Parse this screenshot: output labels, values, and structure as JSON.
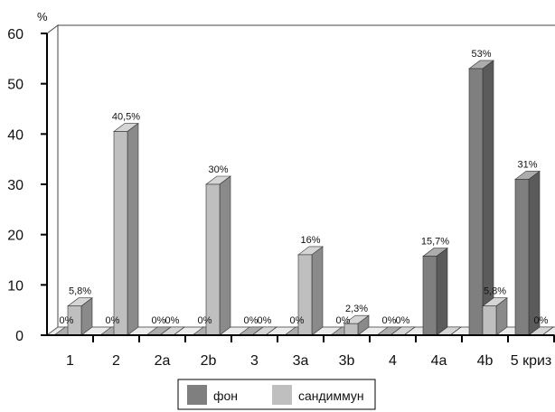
{
  "chart_data": {
    "type": "bar",
    "style": "3d-clustered",
    "y_unit": "%",
    "ylim": [
      0,
      60
    ],
    "yticks": [
      0,
      10,
      20,
      30,
      40,
      50,
      60
    ],
    "grid": false,
    "legend_position": "bottom",
    "categories": [
      "1",
      "2",
      "2a",
      "2b",
      "3",
      "3a",
      "3b",
      "4",
      "4a",
      "4b",
      "5 криз"
    ],
    "series": [
      {
        "name": "фон",
        "color": "#7f7f7f",
        "values": [
          0,
          0,
          0,
          0,
          0,
          0,
          0,
          0,
          15.7,
          53,
          31
        ],
        "labels": [
          "0%",
          "0%",
          "0%",
          "0%",
          "0%",
          "0%",
          "0%",
          "0%",
          "15,7%",
          "53%",
          "31%"
        ]
      },
      {
        "name": "сандиммун",
        "color": "#bfbfbf",
        "values": [
          5.8,
          40.5,
          0,
          30,
          0,
          16,
          2.3,
          0,
          0,
          5.8,
          0
        ],
        "labels": [
          "5,8%",
          "40,5%",
          "0%",
          "30%",
          "0%",
          "16%",
          "2,3%",
          "0%",
          "",
          "5,8%",
          "0%"
        ]
      }
    ]
  }
}
